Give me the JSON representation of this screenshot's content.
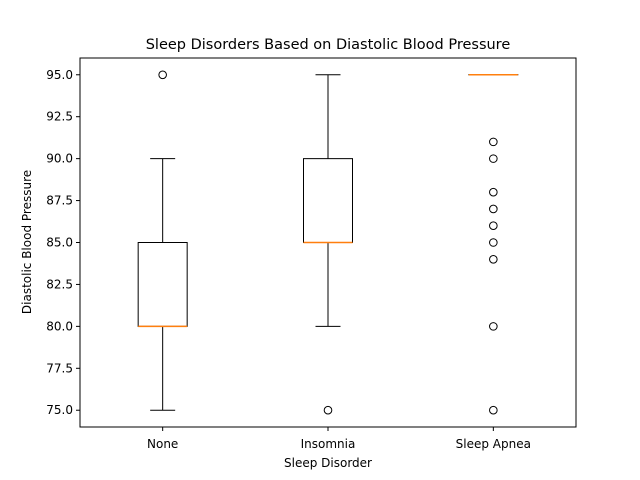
{
  "chart_data": {
    "type": "box",
    "title": "Sleep Disorders Based on Diastolic Blood Pressure",
    "xlabel": "Sleep Disorder",
    "ylabel": "Diastolic Blood Pressure",
    "categories": [
      "None",
      "Insomnia",
      "Sleep Apnea"
    ],
    "ylim": [
      74.0,
      96.0
    ],
    "yticks": [
      75.0,
      77.5,
      80.0,
      82.5,
      85.0,
      87.5,
      90.0,
      92.5,
      95.0
    ],
    "ytick_labels": [
      "75.0",
      "77.5",
      "80.0",
      "82.5",
      "85.0",
      "87.5",
      "90.0",
      "92.5",
      "95.0"
    ],
    "grid": false,
    "boxes": [
      {
        "category": "None",
        "whisker_low": 75.0,
        "q1": 80.0,
        "median": 80.0,
        "q3": 85.0,
        "whisker_high": 90.0,
        "outliers": [
          95.0
        ]
      },
      {
        "category": "Insomnia",
        "whisker_low": 80.0,
        "q1": 85.0,
        "median": 85.0,
        "q3": 90.0,
        "whisker_high": 95.0,
        "outliers": [
          75.0
        ]
      },
      {
        "category": "Sleep Apnea",
        "whisker_low": 95.0,
        "q1": 95.0,
        "median": 95.0,
        "q3": 95.0,
        "whisker_high": 95.0,
        "outliers": [
          91.0,
          90.0,
          88.0,
          87.0,
          86.0,
          85.0,
          84.0,
          80.0,
          75.0
        ]
      }
    ],
    "colors": {
      "box": "#000000",
      "median": "#ff7f0e",
      "outlier": "#000000"
    }
  }
}
